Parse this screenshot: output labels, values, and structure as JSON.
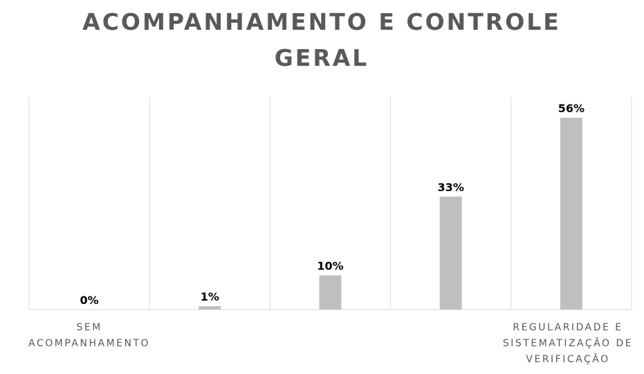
{
  "chart_data": {
    "type": "bar",
    "title": "ACOMPANHAMENTO E CONTROLE GERAL",
    "categories": [
      "SEM ACOMPANHAMENTO",
      null,
      null,
      null,
      "REGULARIDADE E SISTEMATIZAÇÃO DE VERIFICAÇÃO"
    ],
    "values": [
      0,
      1,
      10,
      33,
      56
    ],
    "value_labels": [
      "0%",
      "1%",
      "10%",
      "33%",
      "56%"
    ],
    "color": "#bfbfbf",
    "grid": true
  }
}
